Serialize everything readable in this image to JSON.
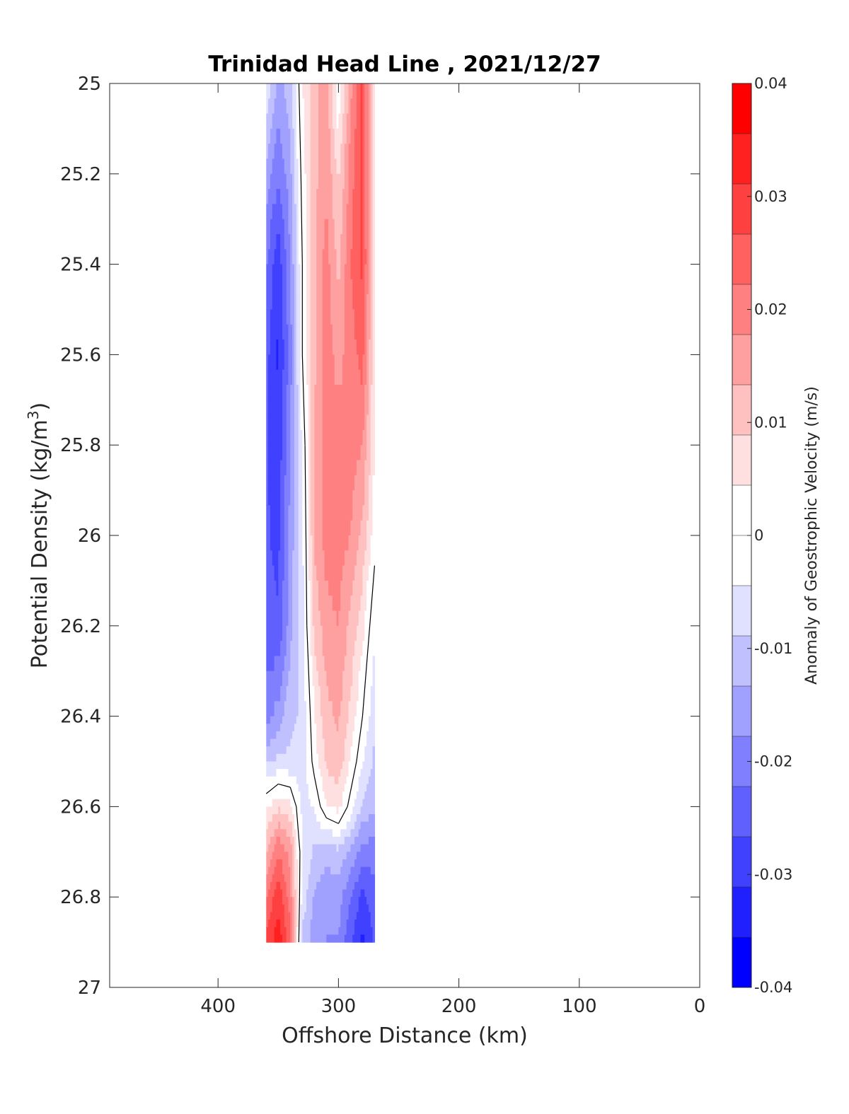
{
  "chart_data": {
    "type": "contour",
    "title": "Trinidad Head Line , 2021/12/27",
    "xlabel": "Offshore Distance (km)",
    "ylabel": "Potential Density (kg/m",
    "ylabel_sup": "3",
    "ylabel_close": ")",
    "xlim": [
      490,
      0
    ],
    "ylim": [
      25,
      27
    ],
    "x_reversed": true,
    "y_reversed": true,
    "xticks": [
      "400",
      "300",
      "200",
      "100",
      "0"
    ],
    "xtick_values": [
      400,
      300,
      200,
      100,
      0
    ],
    "yticks": [
      "25",
      "25.2",
      "25.4",
      "25.6",
      "25.8",
      "26",
      "26.2",
      "26.4",
      "26.6",
      "26.8",
      "27"
    ],
    "ytick_values": [
      25,
      25.2,
      25.4,
      25.6,
      25.8,
      26,
      26.2,
      26.4,
      26.6,
      26.8,
      27
    ],
    "colorbar": {
      "label": "Anomaly of Geostrophic Velocity (m/s)",
      "range": [
        -0.04,
        0.04
      ],
      "levels": 16,
      "ticks": [
        "0.04",
        "0.03",
        "0.02",
        "0.01",
        "0",
        "-0.01",
        "-0.02",
        "-0.03",
        "-0.04"
      ],
      "tick_values": [
        0.04,
        0.03,
        0.02,
        0.01,
        0,
        -0.01,
        -0.02,
        -0.03,
        -0.04
      ],
      "colors": [
        "#0000ff",
        "#2020ff",
        "#4040ff",
        "#6060ff",
        "#8080ff",
        "#a0a0ff",
        "#c0c0ff",
        "#e0e0ff",
        "#ffffff",
        "#ffffff",
        "#ffe0e0",
        "#ffc0c0",
        "#ffa0a0",
        "#ff8080",
        "#ff6060",
        "#ff4040",
        "#ff2020",
        "#ff0000"
      ]
    },
    "x": [
      360,
      350,
      340,
      330,
      320,
      310,
      300,
      290,
      280,
      270
    ],
    "y": [
      25.0,
      25.2,
      25.4,
      25.6,
      25.8,
      26.0,
      26.2,
      26.4,
      26.5,
      26.6,
      26.7,
      26.8,
      26.9
    ],
    "z": [
      [
        -0.005,
        -0.015,
        -0.01,
        0.004,
        0.012,
        0.016,
        0.0,
        0.016,
        0.028,
        0.004
      ],
      [
        -0.015,
        -0.022,
        -0.015,
        0.002,
        0.012,
        0.017,
        0.008,
        0.02,
        0.028,
        0.004
      ],
      [
        -0.022,
        -0.03,
        -0.018,
        0.0,
        0.012,
        0.02,
        0.012,
        0.022,
        0.028,
        0.005
      ],
      [
        -0.025,
        -0.032,
        -0.02,
        0.0,
        0.012,
        0.02,
        0.016,
        0.02,
        0.024,
        0.005
      ],
      [
        -0.026,
        -0.03,
        -0.018,
        -0.004,
        0.014,
        0.02,
        0.02,
        0.02,
        0.018,
        0.004
      ],
      [
        -0.026,
        -0.028,
        -0.016,
        -0.006,
        0.014,
        0.02,
        0.02,
        0.018,
        0.012,
        0.002
      ],
      [
        -0.025,
        -0.026,
        -0.015,
        -0.006,
        0.01,
        0.016,
        0.018,
        0.012,
        0.006,
        -0.004
      ],
      [
        -0.02,
        -0.016,
        -0.01,
        -0.008,
        0.004,
        0.012,
        0.014,
        0.008,
        0.0,
        -0.008
      ],
      [
        -0.01,
        -0.008,
        -0.008,
        -0.008,
        0.002,
        0.01,
        0.012,
        0.004,
        -0.004,
        -0.01
      ],
      [
        0.004,
        0.008,
        0.006,
        -0.006,
        -0.004,
        0.004,
        0.006,
        -0.002,
        -0.01,
        -0.012
      ],
      [
        0.012,
        0.022,
        0.016,
        -0.004,
        -0.01,
        -0.012,
        -0.01,
        -0.014,
        -0.02,
        -0.02
      ],
      [
        0.022,
        0.03,
        0.02,
        -0.006,
        -0.014,
        -0.016,
        -0.016,
        -0.022,
        -0.028,
        -0.024
      ],
      [
        0.028,
        0.034,
        0.024,
        -0.01,
        -0.016,
        -0.018,
        -0.018,
        -0.026,
        -0.032,
        -0.026
      ]
    ]
  }
}
